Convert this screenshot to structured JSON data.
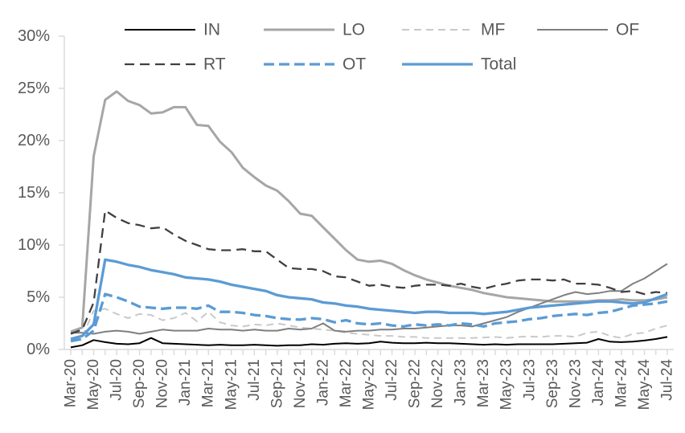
{
  "chart_data": {
    "type": "line",
    "title": "",
    "xlabel": "",
    "ylabel": "",
    "ylim": [
      0,
      30
    ],
    "grid": false,
    "legend_position": "top",
    "colors": {
      "axis": "#D9D9D9",
      "tick_label": "#595959",
      "background": "#FFFFFF",
      "accent_blue": "#5B9BD5"
    },
    "y_tick_labels": [
      "0%",
      "5%",
      "10%",
      "15%",
      "20%",
      "25%",
      "30%"
    ],
    "x_tick_labels": [
      "Mar-20",
      "May-20",
      "Jul-20",
      "Sep-20",
      "Nov-20",
      "Jan-21",
      "Mar-21",
      "May-21",
      "Jul-21",
      "Sep-21",
      "Nov-21",
      "Jan-22",
      "Mar-22",
      "May-22",
      "Jul-22",
      "Sep-22",
      "Nov-22",
      "Jan-23",
      "Mar-23",
      "May-23",
      "Jul-23",
      "Sep-23",
      "Nov-23",
      "Jan-24",
      "Mar-24",
      "May-24",
      "Jul-24"
    ],
    "x": [
      "Mar-20",
      "Apr-20",
      "May-20",
      "Jun-20",
      "Jul-20",
      "Aug-20",
      "Sep-20",
      "Oct-20",
      "Nov-20",
      "Dec-20",
      "Jan-21",
      "Feb-21",
      "Mar-21",
      "Apr-21",
      "May-21",
      "Jun-21",
      "Jul-21",
      "Aug-21",
      "Sep-21",
      "Oct-21",
      "Nov-21",
      "Dec-21",
      "Jan-22",
      "Feb-22",
      "Mar-22",
      "Apr-22",
      "May-22",
      "Jun-22",
      "Jul-22",
      "Aug-22",
      "Sep-22",
      "Oct-22",
      "Nov-22",
      "Dec-22",
      "Jan-23",
      "Feb-23",
      "Mar-23",
      "Apr-23",
      "May-23",
      "Jun-23",
      "Jul-23",
      "Aug-23",
      "Sep-23",
      "Oct-23",
      "Nov-23",
      "Dec-23",
      "Jan-24",
      "Feb-24",
      "Mar-24",
      "Apr-24",
      "May-24",
      "Jun-24",
      "Jul-24"
    ],
    "series": [
      {
        "name": "IN",
        "color": "#000000",
        "style": "solid",
        "width": 2,
        "values": [
          0.2,
          0.4,
          0.9,
          0.7,
          0.55,
          0.5,
          0.6,
          1.1,
          0.6,
          0.55,
          0.5,
          0.45,
          0.4,
          0.45,
          0.4,
          0.4,
          0.45,
          0.4,
          0.35,
          0.4,
          0.4,
          0.5,
          0.45,
          0.55,
          0.6,
          0.55,
          0.6,
          0.75,
          0.65,
          0.6,
          0.6,
          0.65,
          0.6,
          0.6,
          0.55,
          0.5,
          0.45,
          0.5,
          0.45,
          0.5,
          0.5,
          0.5,
          0.5,
          0.55,
          0.6,
          0.65,
          1.0,
          0.75,
          0.7,
          0.75,
          0.85,
          1.0,
          1.2
        ]
      },
      {
        "name": "LO",
        "color": "#A6A6A6",
        "style": "solid",
        "width": 3,
        "values": [
          1.7,
          2.1,
          18.5,
          23.9,
          24.7,
          23.8,
          23.4,
          22.6,
          22.7,
          23.2,
          23.2,
          21.5,
          21.4,
          19.9,
          18.9,
          17.4,
          16.5,
          15.7,
          15.2,
          14.2,
          13.0,
          12.8,
          11.7,
          10.6,
          9.5,
          8.6,
          8.4,
          8.5,
          8.2,
          7.6,
          7.1,
          6.7,
          6.4,
          6.1,
          5.9,
          5.7,
          5.4,
          5.2,
          5.0,
          4.9,
          4.8,
          4.7,
          4.6,
          4.6,
          4.6,
          4.6,
          4.7,
          4.7,
          4.8,
          4.7,
          4.7,
          4.8,
          5.0
        ]
      },
      {
        "name": "MF",
        "color": "#C9C9C9",
        "style": "dashed",
        "dash": "9 6",
        "width": 2,
        "values": [
          1.0,
          1.2,
          3.7,
          3.9,
          3.4,
          3.0,
          3.4,
          3.3,
          2.8,
          3.0,
          3.5,
          2.7,
          3.6,
          2.6,
          2.3,
          2.2,
          2.4,
          2.3,
          2.5,
          2.3,
          2.1,
          2.0,
          1.9,
          1.8,
          1.6,
          1.5,
          1.4,
          1.3,
          1.3,
          1.2,
          1.2,
          1.1,
          1.1,
          1.1,
          1.1,
          1.1,
          1.15,
          1.2,
          1.1,
          1.2,
          1.25,
          1.2,
          1.3,
          1.3,
          1.2,
          1.6,
          1.7,
          1.3,
          1.1,
          1.5,
          1.6,
          2.0,
          2.3
        ]
      },
      {
        "name": "OF",
        "color": "#7F7F7F",
        "style": "solid",
        "width": 2,
        "values": [
          1.6,
          1.6,
          1.5,
          1.7,
          1.8,
          1.7,
          1.5,
          1.7,
          1.9,
          1.8,
          1.8,
          1.8,
          2.0,
          1.9,
          1.9,
          1.8,
          1.9,
          1.8,
          1.8,
          2.0,
          1.9,
          2.0,
          2.5,
          1.8,
          1.7,
          1.8,
          1.8,
          1.9,
          1.9,
          2.0,
          2.0,
          2.1,
          2.2,
          2.3,
          2.3,
          2.2,
          2.5,
          2.8,
          3.1,
          3.6,
          4.0,
          4.4,
          4.8,
          5.2,
          5.5,
          5.3,
          5.4,
          5.6,
          5.6,
          6.3,
          6.8,
          7.5,
          8.2
        ]
      },
      {
        "name": "RT",
        "color": "#404040",
        "style": "dashed",
        "dash": "12 7",
        "width": 2.3,
        "values": [
          1.5,
          1.9,
          4.5,
          13.3,
          12.6,
          12.1,
          11.9,
          11.6,
          11.7,
          11.0,
          10.4,
          10.0,
          9.6,
          9.5,
          9.5,
          9.6,
          9.4,
          9.4,
          8.6,
          7.8,
          7.7,
          7.7,
          7.5,
          7.0,
          6.9,
          6.5,
          6.1,
          6.2,
          6.0,
          5.9,
          6.1,
          6.2,
          6.2,
          6.1,
          6.3,
          6.0,
          5.8,
          6.1,
          6.3,
          6.6,
          6.7,
          6.7,
          6.6,
          6.7,
          6.3,
          6.3,
          6.2,
          5.9,
          5.5,
          5.6,
          5.3,
          5.5,
          5.4
        ]
      },
      {
        "name": "OT",
        "color": "#5B9BD5",
        "style": "dashed",
        "dash": "13 6",
        "width": 3.3,
        "values": [
          0.8,
          1.0,
          1.8,
          5.3,
          5.0,
          4.6,
          4.1,
          4.0,
          3.9,
          4.0,
          4.0,
          3.9,
          4.2,
          3.6,
          3.6,
          3.5,
          3.3,
          3.2,
          3.0,
          2.9,
          2.85,
          3.0,
          2.9,
          2.6,
          2.8,
          2.5,
          2.4,
          2.5,
          2.3,
          2.2,
          2.4,
          2.3,
          2.4,
          2.3,
          2.5,
          2.4,
          2.2,
          2.5,
          2.6,
          2.7,
          2.9,
          3.0,
          3.2,
          3.3,
          3.4,
          3.3,
          3.5,
          3.6,
          3.9,
          4.2,
          4.3,
          4.4,
          4.6
        ]
      },
      {
        "name": "Total",
        "color": "#5B9BD5",
        "style": "solid",
        "width": 3.3,
        "values": [
          1.0,
          1.3,
          2.4,
          8.6,
          8.4,
          8.1,
          7.9,
          7.6,
          7.4,
          7.2,
          6.9,
          6.8,
          6.7,
          6.5,
          6.2,
          6.0,
          5.8,
          5.6,
          5.2,
          5.0,
          4.9,
          4.8,
          4.5,
          4.4,
          4.2,
          4.1,
          3.9,
          3.8,
          3.7,
          3.6,
          3.5,
          3.6,
          3.6,
          3.5,
          3.5,
          3.5,
          3.4,
          3.5,
          3.6,
          3.8,
          4.0,
          4.1,
          4.2,
          4.3,
          4.4,
          4.5,
          4.6,
          4.6,
          4.5,
          4.4,
          4.5,
          4.9,
          5.3
        ]
      }
    ],
    "legend": {
      "rows": [
        [
          "IN",
          "LO",
          "MF",
          "OF"
        ],
        [
          "RT",
          "OT",
          "Total"
        ]
      ]
    }
  }
}
